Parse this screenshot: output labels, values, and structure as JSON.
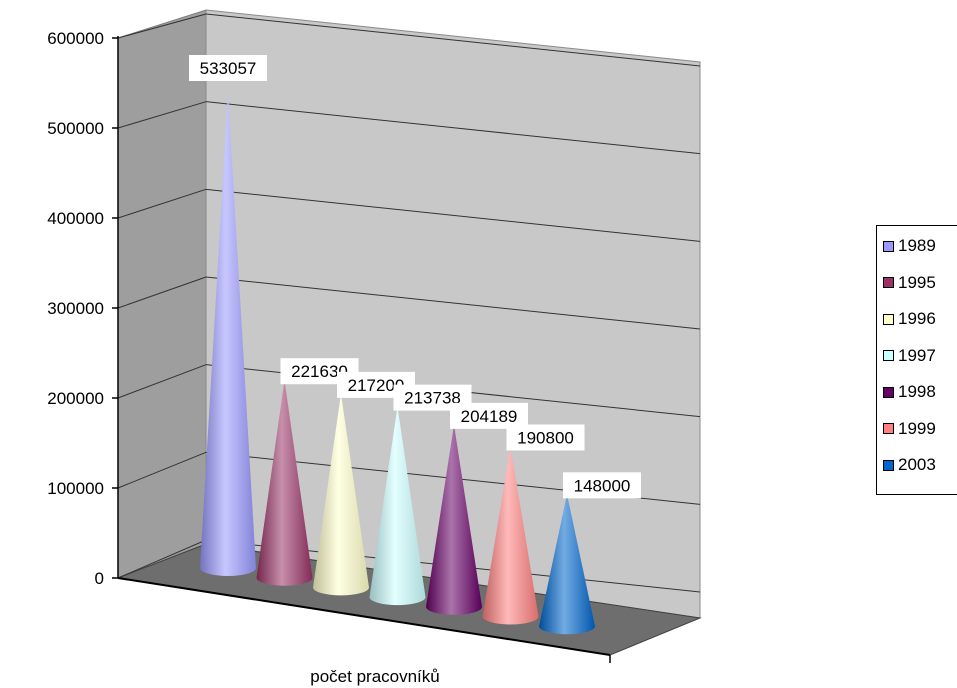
{
  "chart_data": {
    "type": "bar",
    "style": "3d-cone",
    "xlabel": "počet pracovníků",
    "ylim": [
      0,
      600000
    ],
    "yticks": [
      0,
      100000,
      200000,
      300000,
      400000,
      500000,
      600000
    ],
    "grid": true,
    "legend_position": "right",
    "series": [
      {
        "name": "1989",
        "value": 533057,
        "label": "533057",
        "color": "#9999ff"
      },
      {
        "name": "1995",
        "value": 221630,
        "label": "221630",
        "color": "#993366"
      },
      {
        "name": "1996",
        "value": 217200,
        "label": "217200",
        "color": "#ffffcc"
      },
      {
        "name": "1997",
        "value": 213738,
        "label": "213738",
        "color": "#ccffff"
      },
      {
        "name": "1998",
        "value": 204189,
        "label": "204189",
        "color": "#660066"
      },
      {
        "name": "1999",
        "value": 190800,
        "label": "190800",
        "color": "#ff8080"
      },
      {
        "name": "2003",
        "value": 148000,
        "label": "148000",
        "color": "#0066cc"
      }
    ]
  }
}
